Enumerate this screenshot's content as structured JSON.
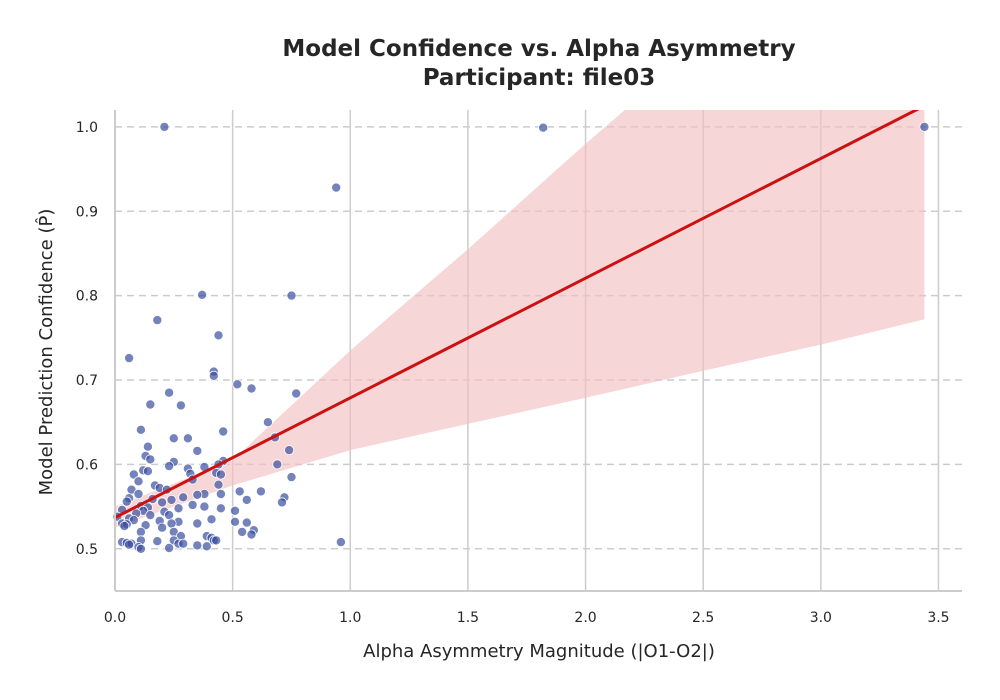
{
  "chart_data": {
    "type": "scatter",
    "title": "Model Confidence vs. Alpha Asymmetry",
    "subtitle": "Participant: file03",
    "xlabel": "Alpha Asymmetry Magnitude (|O1-O2|)",
    "ylabel": "Model Prediction Confidence (P̂)",
    "xlim": [
      0.0,
      3.6
    ],
    "ylim": [
      0.45,
      1.02
    ],
    "x_ticks": [
      0.0,
      0.5,
      1.0,
      1.5,
      2.0,
      2.5,
      3.0,
      3.5
    ],
    "x_tick_labels": [
      "0.0",
      "0.5",
      "1.0",
      "1.5",
      "2.0",
      "2.5",
      "3.0",
      "3.5"
    ],
    "y_ticks": [
      0.5,
      0.6,
      0.7,
      0.8,
      0.9,
      1.0
    ],
    "y_tick_labels": [
      "0.5",
      "0.6",
      "0.7",
      "0.8",
      "0.9",
      "1.0"
    ],
    "grid": {
      "x": "solid",
      "y": "dashed"
    },
    "colors": {
      "points": "#3a4ea0",
      "line": "#cc1111",
      "band": "#f2c0c3",
      "grid": "#cccccc",
      "axis": "#cccccc",
      "text": "#262626"
    },
    "regression": {
      "x": [
        0.0,
        3.44
      ],
      "y": [
        0.537,
        1.025
      ],
      "ci_lower": [
        [
          0.0,
          0.525
        ],
        [
          0.5,
          0.575
        ],
        [
          1.0,
          0.617
        ],
        [
          1.5,
          0.648
        ],
        [
          2.0,
          0.679
        ],
        [
          2.5,
          0.711
        ],
        [
          3.0,
          0.742
        ],
        [
          3.44,
          0.772
        ]
      ],
      "ci_upper": [
        [
          0.0,
          0.55
        ],
        [
          0.5,
          0.605
        ],
        [
          1.0,
          0.735
        ],
        [
          1.5,
          0.855
        ],
        [
          2.0,
          0.98
        ],
        [
          2.5,
          1.1
        ],
        [
          3.0,
          1.22
        ],
        [
          3.44,
          1.33
        ]
      ]
    },
    "points": [
      [
        0.21,
        1.0
      ],
      [
        1.82,
        0.999
      ],
      [
        3.44,
        1.0
      ],
      [
        0.94,
        0.928
      ],
      [
        0.37,
        0.801
      ],
      [
        0.75,
        0.8
      ],
      [
        0.18,
        0.771
      ],
      [
        0.44,
        0.753
      ],
      [
        0.06,
        0.726
      ],
      [
        0.42,
        0.71
      ],
      [
        0.42,
        0.705
      ],
      [
        0.52,
        0.695
      ],
      [
        0.58,
        0.69
      ],
      [
        0.23,
        0.685
      ],
      [
        0.77,
        0.684
      ],
      [
        0.15,
        0.671
      ],
      [
        0.28,
        0.67
      ],
      [
        0.65,
        0.65
      ],
      [
        0.11,
        0.641
      ],
      [
        0.46,
        0.639
      ],
      [
        0.25,
        0.631
      ],
      [
        0.31,
        0.631
      ],
      [
        0.68,
        0.632
      ],
      [
        0.14,
        0.621
      ],
      [
        0.74,
        0.617
      ],
      [
        0.35,
        0.616
      ],
      [
        0.13,
        0.61
      ],
      [
        0.15,
        0.606
      ],
      [
        0.46,
        0.604
      ],
      [
        0.25,
        0.603
      ],
      [
        0.44,
        0.6
      ],
      [
        0.69,
        0.6
      ],
      [
        0.23,
        0.598
      ],
      [
        0.38,
        0.597
      ],
      [
        0.31,
        0.595
      ],
      [
        0.12,
        0.593
      ],
      [
        0.14,
        0.592
      ],
      [
        0.43,
        0.59
      ],
      [
        0.32,
        0.589
      ],
      [
        0.45,
        0.588
      ],
      [
        0.08,
        0.588
      ],
      [
        0.33,
        0.582
      ],
      [
        0.1,
        0.58
      ],
      [
        0.75,
        0.585
      ],
      [
        0.17,
        0.575
      ],
      [
        0.44,
        0.576
      ],
      [
        0.19,
        0.572
      ],
      [
        0.22,
        0.57
      ],
      [
        0.07,
        0.57
      ],
      [
        0.53,
        0.568
      ],
      [
        0.62,
        0.568
      ],
      [
        0.1,
        0.565
      ],
      [
        0.38,
        0.565
      ],
      [
        0.45,
        0.565
      ],
      [
        0.35,
        0.564
      ],
      [
        0.29,
        0.561
      ],
      [
        0.72,
        0.561
      ],
      [
        0.06,
        0.56
      ],
      [
        0.16,
        0.559
      ],
      [
        0.24,
        0.558
      ],
      [
        0.56,
        0.558
      ],
      [
        0.05,
        0.556
      ],
      [
        0.2,
        0.555
      ],
      [
        0.71,
        0.555
      ],
      [
        0.33,
        0.552
      ],
      [
        0.11,
        0.551
      ],
      [
        0.38,
        0.55
      ],
      [
        0.14,
        0.549
      ],
      [
        0.27,
        0.548
      ],
      [
        0.45,
        0.548
      ],
      [
        0.03,
        0.546
      ],
      [
        0.12,
        0.545
      ],
      [
        0.51,
        0.545
      ],
      [
        0.21,
        0.544
      ],
      [
        0.09,
        0.542
      ],
      [
        0.23,
        0.54
      ],
      [
        0.15,
        0.54
      ],
      [
        0.01,
        0.538
      ],
      [
        0.06,
        0.536
      ],
      [
        0.41,
        0.535
      ],
      [
        0.08,
        0.534
      ],
      [
        0.19,
        0.533
      ],
      [
        0.27,
        0.532
      ],
      [
        0.51,
        0.532
      ],
      [
        0.56,
        0.531
      ],
      [
        0.03,
        0.53
      ],
      [
        0.05,
        0.529
      ],
      [
        0.24,
        0.53
      ],
      [
        0.35,
        0.53
      ],
      [
        0.13,
        0.528
      ],
      [
        0.04,
        0.527
      ],
      [
        0.2,
        0.525
      ],
      [
        0.59,
        0.522
      ],
      [
        0.54,
        0.52
      ],
      [
        0.11,
        0.52
      ],
      [
        0.25,
        0.52
      ],
      [
        0.58,
        0.517
      ],
      [
        0.28,
        0.515
      ],
      [
        0.39,
        0.515
      ],
      [
        0.41,
        0.513
      ],
      [
        0.03,
        0.508
      ],
      [
        0.05,
        0.507
      ],
      [
        0.07,
        0.506
      ],
      [
        0.11,
        0.51
      ],
      [
        0.18,
        0.509
      ],
      [
        0.25,
        0.51
      ],
      [
        0.27,
        0.506
      ],
      [
        0.29,
        0.506
      ],
      [
        0.35,
        0.504
      ],
      [
        0.39,
        0.503
      ],
      [
        0.42,
        0.51
      ],
      [
        0.43,
        0.51
      ],
      [
        0.96,
        0.508
      ],
      [
        0.1,
        0.502
      ],
      [
        0.23,
        0.501
      ],
      [
        0.11,
        0.5
      ],
      [
        0.06,
        0.505
      ]
    ]
  }
}
